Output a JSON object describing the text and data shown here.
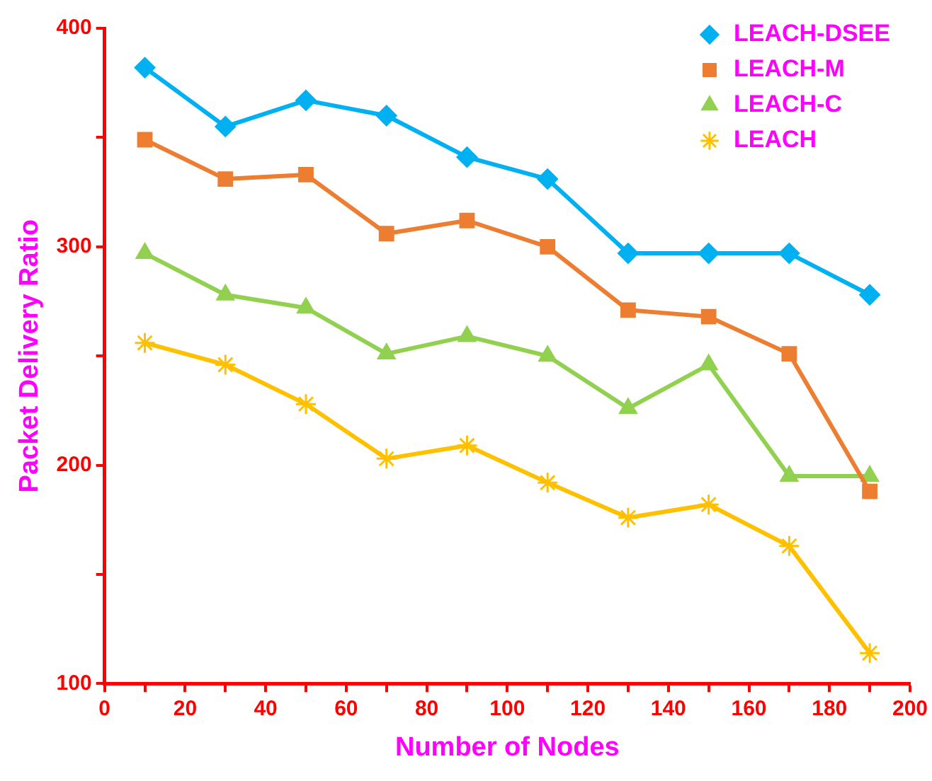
{
  "chart_data": {
    "type": "line",
    "xlabel": "Number of Nodes",
    "ylabel": "Packet Delivery Ratio",
    "x": [
      10,
      30,
      50,
      70,
      90,
      110,
      130,
      150,
      170,
      190
    ],
    "series": [
      {
        "name": "LEACH-DSEE",
        "color": "#00b0f0",
        "marker": "diamond",
        "values": [
          382,
          355,
          367,
          360,
          341,
          331,
          297,
          297,
          297,
          278
        ]
      },
      {
        "name": "LEACH-M",
        "color": "#ed7d31",
        "marker": "square",
        "values": [
          349,
          331,
          333,
          306,
          312,
          300,
          271,
          268,
          251,
          188
        ]
      },
      {
        "name": "LEACH-C",
        "color": "#92d050",
        "marker": "triangle",
        "values": [
          297,
          278,
          272,
          251,
          259,
          250,
          226,
          246,
          195,
          195
        ]
      },
      {
        "name": "LEACH",
        "color": "#ffc000",
        "marker": "cross",
        "values": [
          256,
          246,
          228,
          203,
          209,
          192,
          176,
          182,
          163,
          114
        ]
      }
    ],
    "xlim": [
      0,
      200
    ],
    "xticks": [
      0,
      {
        "value": 10,
        "label": null
      },
      20,
      {
        "value": 30,
        "label": null
      },
      40,
      {
        "value": 50,
        "label": null
      },
      60,
      {
        "value": 70,
        "label": null
      },
      80,
      {
        "value": 90,
        "label": null
      },
      100,
      {
        "value": 110,
        "label": null
      },
      120,
      {
        "value": 130,
        "label": null
      },
      140,
      {
        "value": 150,
        "label": null
      },
      160,
      {
        "value": 170,
        "label": null
      },
      180,
      {
        "value": 190,
        "label": null
      },
      200
    ],
    "ylim": [
      100,
      400
    ],
    "yticks": [
      100,
      {
        "value": 150,
        "label": null
      },
      200,
      {
        "value": 250,
        "label": null
      },
      300,
      {
        "value": 350,
        "label": null
      },
      400
    ],
    "legend": "top right",
    "grid": false,
    "line_style": "solid"
  }
}
